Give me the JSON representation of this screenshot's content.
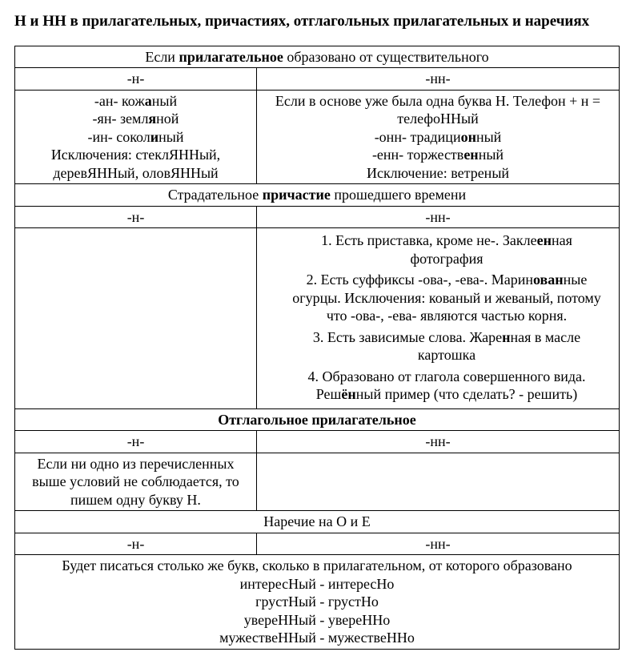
{
  "title": "Н и НН в прилагательных, причастиях, отглагольных прилагательных и наречиях",
  "s1": {
    "header_pre": "Если ",
    "header_bold": "прилагательное",
    "header_post": " образовано от существительного",
    "col1": "-н-",
    "col2": "-нн-",
    "left_l1a": "-ан- кож",
    "left_l1b": "а",
    "left_l1c": "ный",
    "left_l2a": "-ян- земл",
    "left_l2b": "я",
    "left_l2c": "ной",
    "left_l3a": "-ин- сокол",
    "left_l3b": "и",
    "left_l3c": "ный",
    "left_l4": "Исключения: стеклЯННый, деревЯННый, оловЯННый",
    "right_l1": "Если в основе уже была одна буква Н. Телефон + н = телефоННый",
    "right_l2a": "-онн- традици",
    "right_l2b": "он",
    "right_l2c": "ный",
    "right_l3a": "-енн- торжеств",
    "right_l3b": "ен",
    "right_l3c": "ный",
    "right_l4": "Исключение: ветреный"
  },
  "s2": {
    "header_pre": "Страдательное ",
    "header_bold": "причастие",
    "header_post": " прошедшего времени",
    "col1": "-н-",
    "col2": "-нн-",
    "r1a": "Есть приставка, кроме не-. Закле",
    "r1b": "ен",
    "r1c": "ная фотография",
    "r2a": "Есть суффиксы -ова-, -ева-. Марин",
    "r2b": "ован",
    "r2c": "ные огурцы. Исключения: кованый и жеваный, потому что -ова-, -ева- являются частью корня.",
    "r3a": "Есть зависимые слова. Жаре",
    "r3b": "н",
    "r3c": "ная в масле картошка",
    "r4a": "Образовано от глагола совершенного вида. Реш",
    "r4b": "ён",
    "r4c": "ный пример (что сделать? - решить)"
  },
  "s3": {
    "header": "Отглагольное прилагательное",
    "col1": "-н-",
    "col2": "-нн-",
    "left": "Если ни одно из перечисленных выше условий не соблюдается, то пишем одну букву Н."
  },
  "s4": {
    "header": "Наречие на О и Е",
    "col1": "-н-",
    "col2": "-нн-",
    "line1": "Будет писаться столько же букв, сколько в прилагательном, от которого образовано",
    "line2": "интересНый - интересНо",
    "line3": "грустНый - грустНо",
    "line4": "увереННый - увереННо",
    "line5": "мужествеННый - мужествеННо"
  }
}
